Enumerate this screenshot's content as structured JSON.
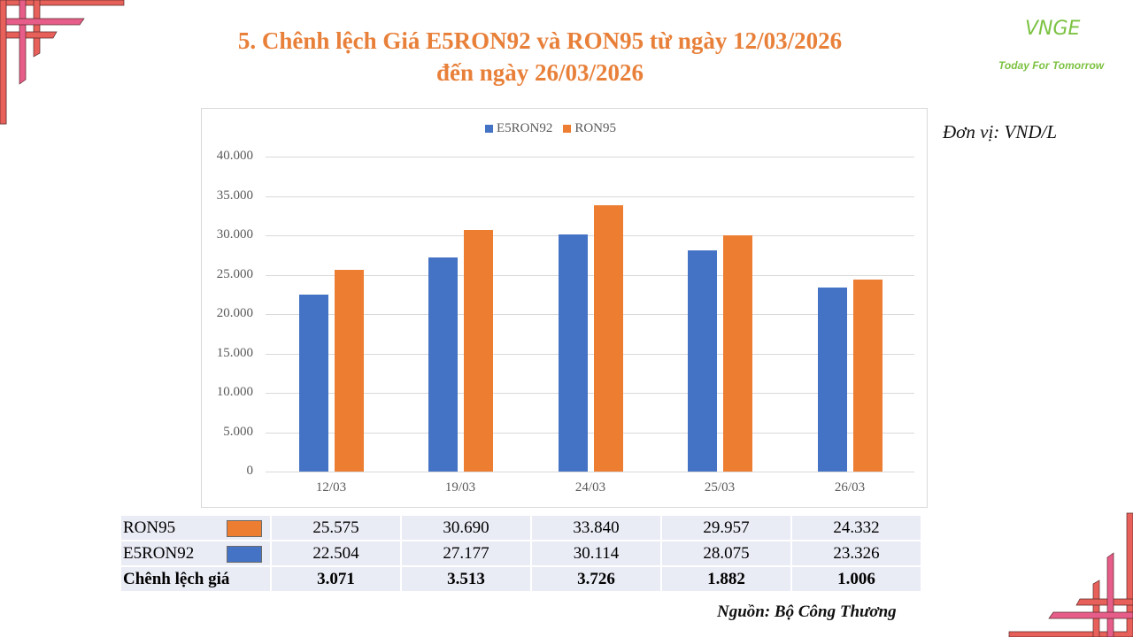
{
  "slide": {
    "title_line1": "5. Chênh lệch Giá E5RON92 và RON95 từ ngày 12/03/2026",
    "title_line2": "đến ngày 26/03/2026",
    "unit": "Đơn vị: VND/L",
    "source": "Nguồn: Bộ Công Thương",
    "title_color": "#E8803A"
  },
  "logo": {
    "mark": "VNGE",
    "tagline": "Today For Tomorrow",
    "color": "#7CC242"
  },
  "decor": {
    "corner_color_outer": "#E8605A",
    "corner_color_inner": "#E75D8A"
  },
  "chart_data": {
    "type": "bar",
    "title": "",
    "xlabel": "",
    "ylabel": "",
    "categories": [
      "12/03",
      "19/03",
      "24/03",
      "25/03",
      "26/03"
    ],
    "series": [
      {
        "name": "E5RON92",
        "color": "#4472C4",
        "values": [
          22504,
          27177,
          30114,
          28075,
          23326
        ]
      },
      {
        "name": "RON95",
        "color": "#ED7D31",
        "values": [
          25575,
          30690,
          33840,
          29957,
          24332
        ]
      }
    ],
    "ylim": [
      0,
      40000
    ],
    "yticks": [
      "0",
      "5.000",
      "10.000",
      "15.000",
      "20.000",
      "25.000",
      "30.000",
      "35.000",
      "40.000"
    ],
    "grid": true,
    "legend_position": "top"
  },
  "table": {
    "rows": [
      {
        "label": "RON95",
        "swatch": "#ED7D31",
        "values": [
          "25.575",
          "30.690",
          "33.840",
          "29.957",
          "24.332"
        ]
      },
      {
        "label": "E5RON92",
        "swatch": "#4472C4",
        "values": [
          "22.504",
          "27.177",
          "30.114",
          "28.075",
          "23.326"
        ]
      },
      {
        "label": "Chênh lệch giá",
        "values": [
          "3.071",
          "3.513",
          "3.726",
          "1.882",
          "1.006"
        ]
      }
    ]
  }
}
